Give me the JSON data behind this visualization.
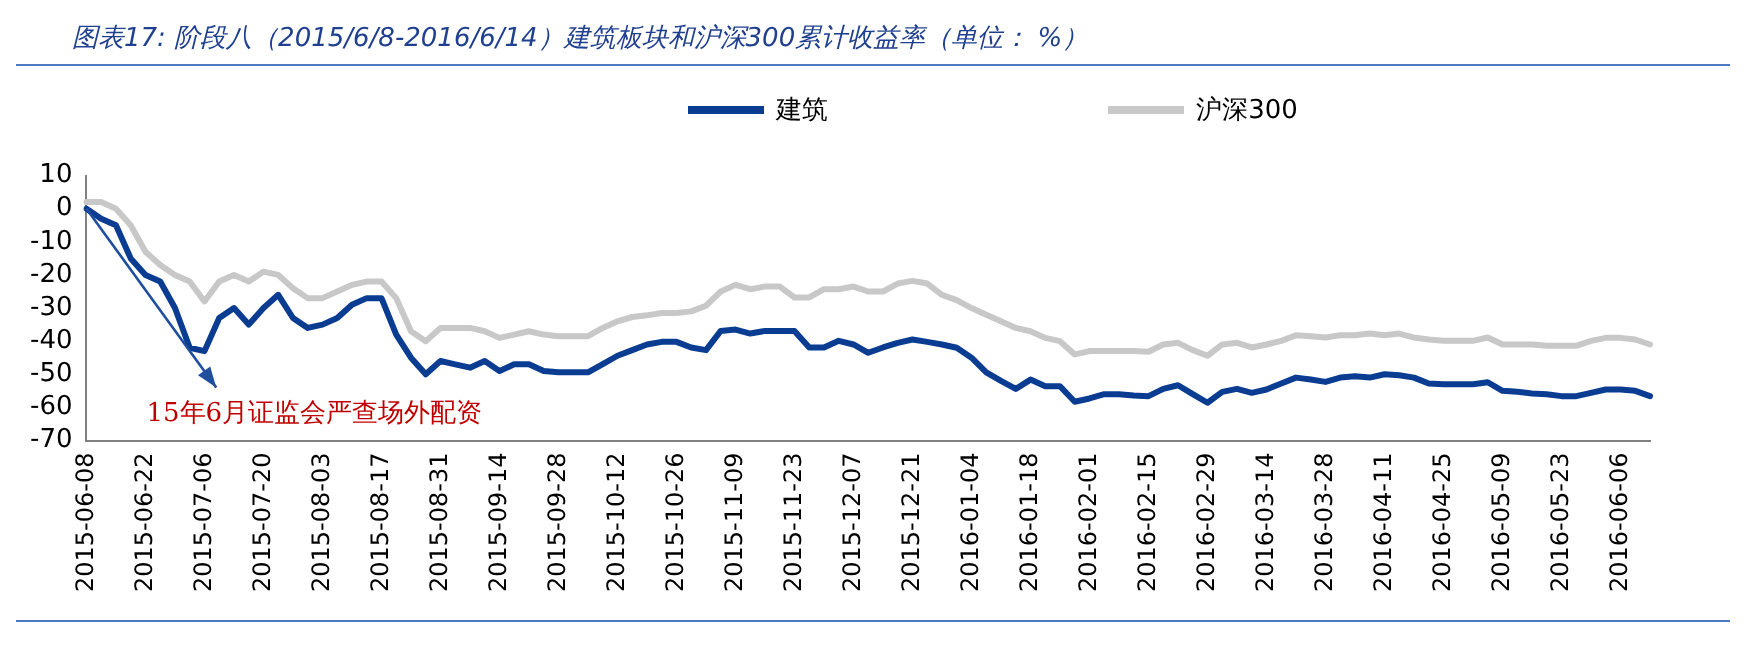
{
  "chart_data": {
    "type": "line",
    "title": "图表17:  阶段八（2015/6/8-2016/6/14）建筑板块和沪深300累计收益率（单位：  %）",
    "categories": [
      "2015-06-08",
      null,
      null,
      null,
      "2015-06-22",
      null,
      null,
      null,
      "2015-07-06",
      null,
      null,
      null,
      "2015-07-20",
      null,
      null,
      null,
      "2015-08-03",
      null,
      null,
      null,
      "2015-08-17",
      null,
      null,
      null,
      "2015-08-31",
      null,
      null,
      null,
      "2015-09-14",
      null,
      null,
      null,
      "2015-09-28",
      null,
      null,
      null,
      "2015-10-12",
      null,
      null,
      null,
      "2015-10-26",
      null,
      null,
      null,
      "2015-11-09",
      null,
      null,
      null,
      "2015-11-23",
      null,
      null,
      null,
      "2015-12-07",
      null,
      null,
      null,
      "2015-12-21",
      null,
      null,
      null,
      "2016-01-04",
      null,
      null,
      null,
      "2016-01-18",
      null,
      null,
      null,
      "2016-02-01",
      null,
      null,
      null,
      "2016-02-15",
      null,
      null,
      null,
      "2016-02-29",
      null,
      null,
      null,
      "2016-03-14",
      null,
      null,
      null,
      "2016-03-28",
      null,
      null,
      null,
      "2016-04-11",
      null,
      null,
      null,
      "2016-04-25",
      null,
      null,
      null,
      "2016-05-09",
      null,
      null,
      null,
      "2016-05-23",
      null,
      null,
      null,
      "2016-06-06",
      null,
      null
    ],
    "series": [
      {
        "name": "建筑",
        "color": "#0a3d91",
        "values": [
          0,
          -3,
          -5,
          -15,
          -20,
          -22,
          -30,
          -42,
          -43,
          -33,
          -30,
          -35,
          -30,
          -26,
          -33,
          -36,
          -35,
          -33,
          -29,
          -27,
          -27,
          -38,
          -45,
          -50,
          -46,
          -47,
          -48,
          -46,
          -49,
          -47,
          -47,
          -49,
          -49.4,
          -49.4,
          -49.4,
          -46.9,
          -44.4,
          -42.7,
          -41,
          -40.2,
          -40.2,
          -41.9,
          -42.7,
          -36.9,
          -36.5,
          -37.7,
          -36.9,
          -36.9,
          -36.9,
          -41.9,
          -41.9,
          -39.9,
          -41,
          -43.5,
          -41.9,
          -40.5,
          -39.5,
          -40.2,
          -41,
          -42,
          -45,
          -49.4,
          -52,
          -54.4,
          -51.6,
          -53.6,
          -53.6,
          -58.3,
          -57.3,
          -56,
          -56,
          -56.4,
          -56.6,
          -54.4,
          -53.3,
          -56,
          -58.6,
          -55.3,
          -54.4,
          -55.6,
          -54.6,
          -52.8,
          -51,
          -51.6,
          -52.3,
          -51,
          -50.6,
          -51,
          -50,
          -50.3,
          -51,
          -52.8,
          -53,
          -53,
          -53,
          -52.4,
          -55,
          -55.3,
          -55.8,
          -56,
          -56.6,
          -56.6,
          -55.6,
          -54.6,
          -54.6,
          -55,
          -56.6
        ]
      },
      {
        "name": "沪深300",
        "color": "#c8c8c8",
        "values": [
          2,
          2,
          0,
          -5,
          -13,
          -17,
          -20,
          -22,
          -28,
          -22,
          -20,
          -22,
          -19,
          -20,
          -24,
          -27,
          -27,
          -25,
          -23,
          -22,
          -22,
          -27,
          -37,
          -40,
          -36,
          -36,
          -36,
          -37,
          -39,
          -38,
          -37,
          -38,
          -38.5,
          -38.5,
          -38.5,
          -36,
          -34,
          -32.7,
          -32.2,
          -31.5,
          -31.5,
          -31,
          -29.3,
          -25,
          -23,
          -24.3,
          -23.5,
          -23.5,
          -26.8,
          -26.8,
          -24.3,
          -24.3,
          -23.5,
          -25,
          -25,
          -22.6,
          -21.8,
          -22.6,
          -26,
          -27.6,
          -30,
          -32,
          -34,
          -36,
          -37,
          -39,
          -40,
          -44,
          -43,
          -43,
          -43,
          -43,
          -43.2,
          -41,
          -40.5,
          -42.7,
          -44.4,
          -41,
          -40.5,
          -41.9,
          -41,
          -39.9,
          -38.2,
          -38.5,
          -38.9,
          -38.2,
          -38.2,
          -37.7,
          -38.2,
          -37.7,
          -38.9,
          -39.5,
          -39.9,
          -39.9,
          -39.9,
          -38.9,
          -41,
          -41,
          -41,
          -41.4,
          -41.4,
          -41.4,
          -39.9,
          -39,
          -39,
          -39.5,
          -41
        ]
      }
    ],
    "ylim": [
      -70,
      10
    ],
    "yticks": [
      -70,
      -60,
      -50,
      -40,
      -30,
      -20,
      -10,
      0,
      10
    ],
    "grid": false,
    "legend": "top",
    "marker": "none",
    "line_style": "solid",
    "annotations": [
      "15年6月证监会严查场外配资"
    ]
  }
}
